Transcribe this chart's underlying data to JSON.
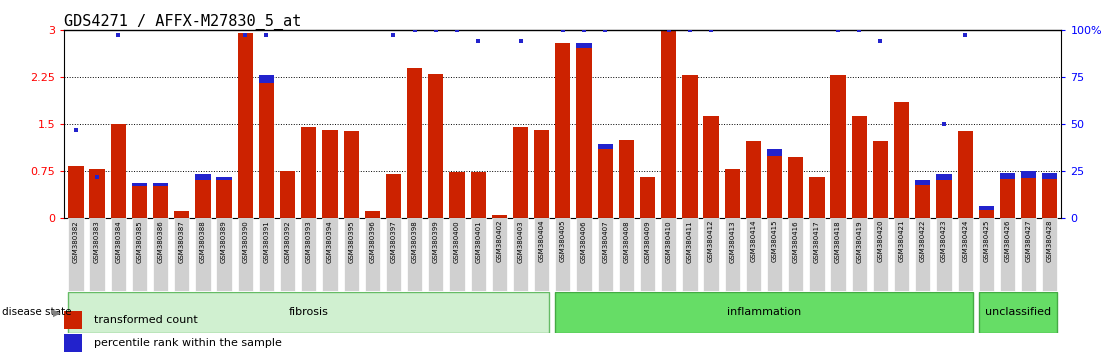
{
  "title": "GDS4271 / AFFX-M27830_5_at",
  "samples": [
    "GSM380382",
    "GSM380383",
    "GSM380384",
    "GSM380385",
    "GSM380386",
    "GSM380387",
    "GSM380388",
    "GSM380389",
    "GSM380390",
    "GSM380391",
    "GSM380392",
    "GSM380393",
    "GSM380394",
    "GSM380395",
    "GSM380396",
    "GSM380397",
    "GSM380398",
    "GSM380399",
    "GSM380400",
    "GSM380401",
    "GSM380402",
    "GSM380403",
    "GSM380404",
    "GSM380405",
    "GSM380406",
    "GSM380407",
    "GSM380408",
    "GSM380409",
    "GSM380410",
    "GSM380411",
    "GSM380412",
    "GSM380413",
    "GSM380414",
    "GSM380415",
    "GSM380416",
    "GSM380417",
    "GSM380418",
    "GSM380419",
    "GSM380420",
    "GSM380421",
    "GSM380422",
    "GSM380423",
    "GSM380424",
    "GSM380425",
    "GSM380426",
    "GSM380427",
    "GSM380428"
  ],
  "bar_values": [
    0.82,
    0.78,
    1.5,
    0.55,
    0.55,
    0.1,
    0.7,
    0.65,
    2.95,
    2.28,
    0.75,
    1.45,
    1.4,
    1.38,
    0.1,
    0.7,
    2.4,
    2.3,
    0.73,
    0.73,
    0.05,
    1.45,
    1.4,
    2.8,
    2.8,
    1.18,
    1.25,
    0.65,
    3.02,
    2.28,
    1.62,
    0.78,
    1.22,
    1.1,
    0.97,
    0.65,
    2.28,
    1.62,
    1.22,
    1.85,
    0.6,
    0.7,
    1.38,
    0.18,
    0.72,
    0.75,
    0.72
  ],
  "dot_values": [
    1.4,
    0.65,
    2.92,
    null,
    null,
    null,
    null,
    null,
    2.92,
    2.92,
    null,
    null,
    null,
    null,
    null,
    2.92,
    3.0,
    3.0,
    3.0,
    2.82,
    null,
    2.82,
    null,
    3.0,
    3.0,
    3.0,
    null,
    null,
    3.0,
    3.0,
    3.0,
    null,
    null,
    null,
    null,
    null,
    3.0,
    3.0,
    2.82,
    null,
    null,
    1.5,
    2.92,
    null,
    null,
    null,
    null
  ],
  "blue_bar_values": [
    null,
    null,
    null,
    0.04,
    0.04,
    null,
    0.1,
    0.05,
    null,
    0.12,
    null,
    null,
    null,
    null,
    null,
    null,
    null,
    null,
    null,
    null,
    null,
    null,
    null,
    null,
    0.08,
    0.08,
    null,
    null,
    null,
    null,
    null,
    null,
    null,
    0.12,
    null,
    null,
    null,
    null,
    null,
    null,
    0.08,
    0.1,
    null,
    0.05,
    0.1,
    0.12,
    0.1
  ],
  "group_defs": [
    {
      "start": 0,
      "end": 23,
      "color": "#d0f0d0",
      "border": "#66bb66",
      "label": "fibrosis"
    },
    {
      "start": 23,
      "end": 43,
      "color": "#66dd66",
      "border": "#44aa44",
      "label": "inflammation"
    },
    {
      "start": 43,
      "end": 47,
      "color": "#66dd66",
      "border": "#44aa44",
      "label": "unclassified"
    }
  ],
  "yticks": [
    0,
    0.75,
    1.5,
    2.25,
    3.0
  ],
  "ytick_labels": [
    "0",
    "0.75",
    "1.5",
    "2.25",
    "3"
  ],
  "right_ytick_labels": [
    "0",
    "25",
    "50",
    "75",
    "100%"
  ],
  "bar_color": "#cc2200",
  "blue_color": "#2222cc",
  "title_fontsize": 11
}
